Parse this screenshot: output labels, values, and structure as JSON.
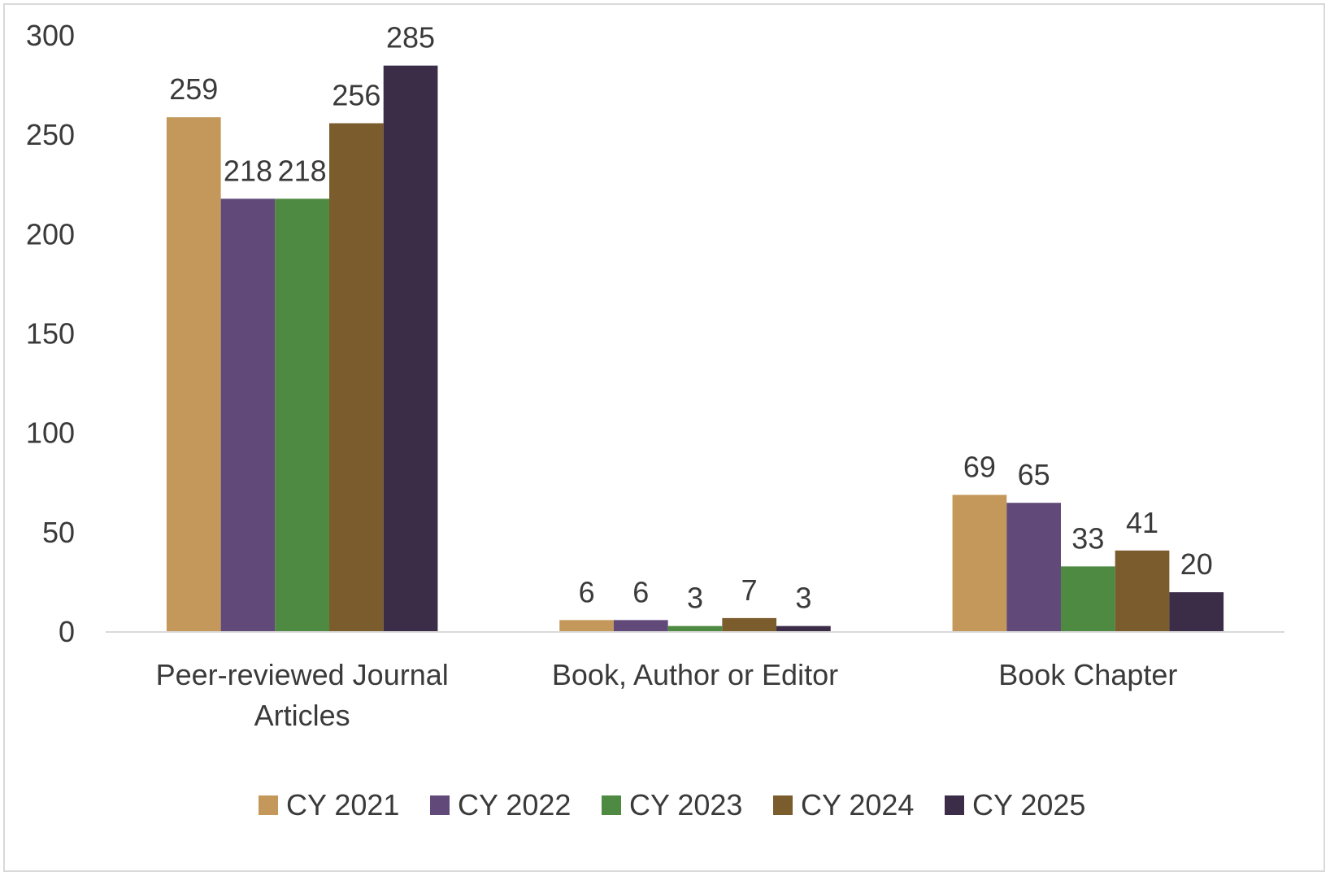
{
  "chart_data": {
    "type": "bar",
    "title": "",
    "xlabel": "",
    "ylabel": "",
    "categories": [
      [
        "Peer-reviewed Journal",
        "Articles"
      ],
      [
        "Book, Author or Editor"
      ],
      [
        "Book Chapter"
      ]
    ],
    "series": [
      {
        "name": "CY 2021",
        "color": "#c4985a",
        "values": [
          259,
          6,
          69
        ]
      },
      {
        "name": "CY 2022",
        "color": "#614979",
        "values": [
          218,
          6,
          65
        ]
      },
      {
        "name": "CY 2023",
        "color": "#4f8a42",
        "values": [
          218,
          3,
          33
        ]
      },
      {
        "name": "CY 2024",
        "color": "#7b5c2d",
        "values": [
          256,
          7,
          41
        ]
      },
      {
        "name": "CY 2025",
        "color": "#3b2c48",
        "values": [
          285,
          3,
          20
        ]
      }
    ],
    "ylim": [
      0,
      300
    ],
    "yticks": [
      0,
      50,
      100,
      150,
      200,
      250,
      300
    ],
    "grid": false,
    "legend_position": "bottom",
    "data_labels": true,
    "axis_color": "#d9d9d9"
  }
}
